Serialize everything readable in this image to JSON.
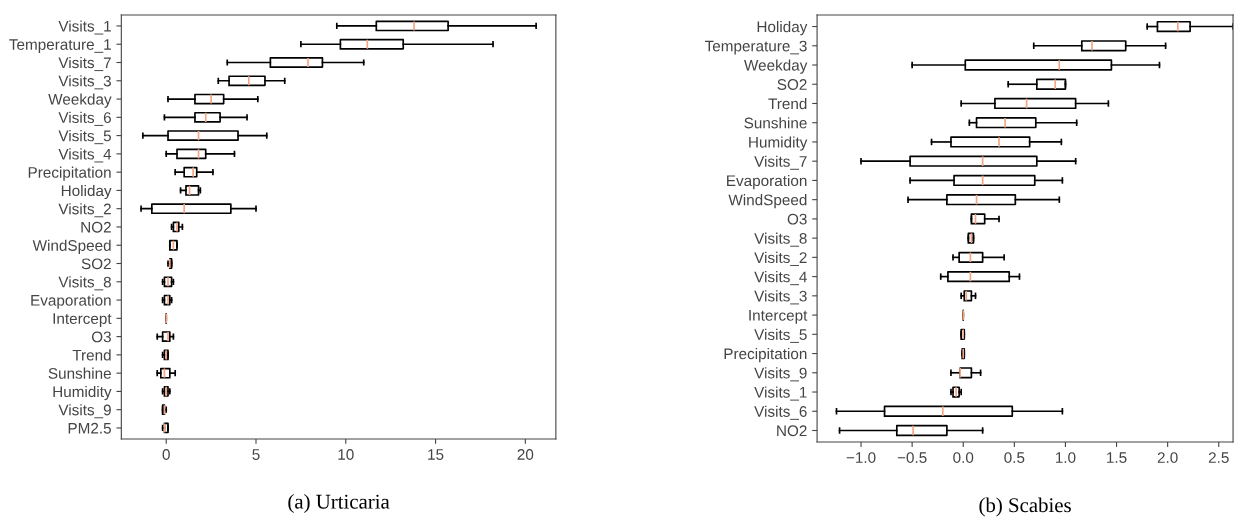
{
  "chart_data": [
    {
      "type": "box",
      "title": "(a) Urticaria",
      "orientation": "horizontal",
      "color": "#000000",
      "categories": [
        "Visits_1",
        "Temperature_1",
        "Visits_7",
        "Visits_3",
        "Weekday",
        "Visits_6",
        "Visits_5",
        "Visits_4",
        "Precipitation",
        "Holiday",
        "Visits_2",
        "NO2",
        "WindSpeed",
        "SO2",
        "Visits_8",
        "Evaporation",
        "Intercept",
        "O3",
        "Trend",
        "Sunshine",
        "Humidity",
        "Visits_9",
        "PM2.5"
      ],
      "boxes": [
        {
          "low": 9.5,
          "q1": 11.7,
          "median": 13.8,
          "q3": 15.7,
          "high": 20.6
        },
        {
          "low": 7.5,
          "q1": 9.7,
          "median": 11.2,
          "q3": 13.2,
          "high": 18.2
        },
        {
          "low": 3.4,
          "q1": 5.8,
          "median": 7.9,
          "q3": 8.7,
          "high": 11.0
        },
        {
          "low": 2.9,
          "q1": 3.5,
          "median": 4.6,
          "q3": 5.5,
          "high": 6.6
        },
        {
          "low": 0.1,
          "q1": 1.6,
          "median": 2.5,
          "q3": 3.2,
          "high": 5.1
        },
        {
          "low": -0.1,
          "q1": 1.6,
          "median": 2.2,
          "q3": 3.0,
          "high": 4.5
        },
        {
          "low": -1.3,
          "q1": 0.1,
          "median": 1.8,
          "q3": 4.0,
          "high": 5.6
        },
        {
          "low": 0.0,
          "q1": 0.6,
          "median": 1.8,
          "q3": 2.2,
          "high": 3.8
        },
        {
          "low": 0.5,
          "q1": 1.0,
          "median": 1.5,
          "q3": 1.7,
          "high": 2.6
        },
        {
          "low": 0.8,
          "q1": 1.1,
          "median": 1.3,
          "q3": 1.8,
          "high": 1.9
        },
        {
          "low": -1.4,
          "q1": -0.8,
          "median": 1.0,
          "q3": 3.6,
          "high": 5.0
        },
        {
          "low": 0.3,
          "q1": 0.4,
          "median": 0.6,
          "q3": 0.7,
          "high": 0.9
        },
        {
          "low": 0.2,
          "q1": 0.2,
          "median": 0.4,
          "q3": 0.6,
          "high": 0.6
        },
        {
          "low": 0.1,
          "q1": 0.2,
          "median": 0.2,
          "q3": 0.3,
          "high": 0.3
        },
        {
          "low": -0.2,
          "q1": -0.1,
          "median": 0.1,
          "q3": 0.3,
          "high": 0.4
        },
        {
          "low": -0.2,
          "q1": -0.1,
          "median": 0.1,
          "q3": 0.2,
          "high": 0.3
        },
        {
          "low": 0,
          "q1": 0,
          "median": 0,
          "q3": 0,
          "high": 0
        },
        {
          "low": -0.5,
          "q1": -0.2,
          "median": 0.1,
          "q3": 0.2,
          "high": 0.4
        },
        {
          "low": -0.2,
          "q1": -0.1,
          "median": 0.0,
          "q3": 0.1,
          "high": 0.1
        },
        {
          "low": -0.5,
          "q1": -0.3,
          "median": -0.1,
          "q3": 0.2,
          "high": 0.5
        },
        {
          "low": -0.2,
          "q1": -0.1,
          "median": 0.0,
          "q3": 0.1,
          "high": 0.2
        },
        {
          "low": -0.2,
          "q1": -0.2,
          "median": -0.1,
          "q3": -0.1,
          "high": 0.0
        },
        {
          "low": -0.2,
          "q1": -0.1,
          "median": -0.1,
          "q3": 0.1,
          "high": 0.1
        }
      ],
      "xlim": [
        -2.5,
        21.7
      ],
      "xticks": [
        0,
        5,
        10,
        15,
        20
      ],
      "grid": false
    },
    {
      "type": "box",
      "title": "(b) Scabies",
      "orientation": "horizontal",
      "color": "#000000",
      "categories": [
        "Holiday",
        "Temperature_3",
        "Weekday",
        "SO2",
        "Trend",
        "Sunshine",
        "Humidity",
        "Visits_7",
        "Evaporation",
        "WindSpeed",
        "O3",
        "Visits_8",
        "Visits_2",
        "Visits_4",
        "Visits_3",
        "Intercept",
        "Visits_5",
        "Precipitation",
        "Visits_9",
        "Visits_1",
        "Visits_6",
        "NO2"
      ],
      "boxes": [
        {
          "low": 1.8,
          "q1": 1.9,
          "median": 2.1,
          "q3": 2.22,
          "high": 2.64
        },
        {
          "low": 0.69,
          "q1": 1.16,
          "median": 1.26,
          "q3": 1.59,
          "high": 1.98
        },
        {
          "low": -0.5,
          "q1": 0.02,
          "median": 0.94,
          "q3": 1.45,
          "high": 1.92
        },
        {
          "low": 0.44,
          "q1": 0.72,
          "median": 0.9,
          "q3": 1.0,
          "high": 1.0
        },
        {
          "low": -0.02,
          "q1": 0.31,
          "median": 0.62,
          "q3": 1.1,
          "high": 1.42
        },
        {
          "low": 0.06,
          "q1": 0.13,
          "median": 0.41,
          "q3": 0.71,
          "high": 1.11
        },
        {
          "low": -0.31,
          "q1": -0.12,
          "median": 0.35,
          "q3": 0.65,
          "high": 0.96
        },
        {
          "low": -1.0,
          "q1": -0.52,
          "median": 0.19,
          "q3": 0.72,
          "high": 1.1
        },
        {
          "low": -0.52,
          "q1": -0.09,
          "median": 0.19,
          "q3": 0.7,
          "high": 0.97
        },
        {
          "low": -0.54,
          "q1": -0.16,
          "median": 0.13,
          "q3": 0.51,
          "high": 0.94
        },
        {
          "low": 0.08,
          "q1": 0.08,
          "median": 0.12,
          "q3": 0.21,
          "high": 0.35
        },
        {
          "low": 0.05,
          "q1": 0.05,
          "median": 0.08,
          "q3": 0.1,
          "high": 0.1
        },
        {
          "low": -0.1,
          "q1": -0.04,
          "median": 0.07,
          "q3": 0.19,
          "high": 0.4
        },
        {
          "low": -0.22,
          "q1": -0.15,
          "median": 0.07,
          "q3": 0.45,
          "high": 0.55
        },
        {
          "low": -0.02,
          "q1": 0.01,
          "median": 0.03,
          "q3": 0.08,
          "high": 0.12
        },
        {
          "low": 0,
          "q1": 0,
          "median": 0,
          "q3": 0,
          "high": 0
        },
        {
          "low": -0.02,
          "q1": -0.02,
          "median": 0.0,
          "q3": 0.01,
          "high": 0.01
        },
        {
          "low": -0.01,
          "q1": -0.01,
          "median": 0.0,
          "q3": 0.01,
          "high": 0.01
        },
        {
          "low": -0.12,
          "q1": -0.03,
          "median": -0.03,
          "q3": 0.08,
          "high": 0.17
        },
        {
          "low": -0.12,
          "q1": -0.1,
          "median": -0.07,
          "q3": -0.04,
          "high": -0.02
        },
        {
          "low": -1.24,
          "q1": -0.77,
          "median": -0.2,
          "q3": 0.48,
          "high": 0.97
        },
        {
          "low": -1.21,
          "q1": -0.65,
          "median": -0.49,
          "q3": -0.16,
          "high": 0.19
        }
      ],
      "xlim": [
        -1.43,
        2.64
      ],
      "xticks": [
        {
          "value": -1.0,
          "label": "−1.0"
        },
        {
          "value": -0.5,
          "label": "−0.5"
        },
        {
          "value": 0,
          "label": "0.0"
        },
        0.5,
        {
          "value": 1,
          "label": "1.0"
        },
        1.5,
        {
          "value": 2,
          "label": "2.0"
        },
        2.5
      ],
      "grid": false
    }
  ]
}
